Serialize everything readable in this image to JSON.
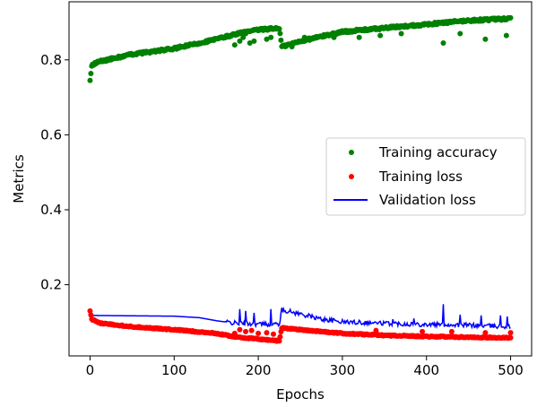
{
  "chart_data": {
    "type": "scatter",
    "xlabel": "Epochs",
    "ylabel": "Metrics",
    "xlim": [
      -25,
      525
    ],
    "ylim": [
      0.01,
      0.955
    ],
    "xticks": [
      0,
      100,
      200,
      300,
      400,
      500
    ],
    "yticks": [
      0.2,
      0.4,
      0.6,
      0.8
    ],
    "ytick_labels": [
      "0.2",
      "0.4",
      "0.6",
      "0.8"
    ],
    "xtick_labels": [
      "0",
      "100",
      "200",
      "300",
      "400",
      "500"
    ],
    "grid": false,
    "legend_position": "center-right",
    "series": [
      {
        "name": "Training accuracy",
        "style": "markers",
        "color": "#008000",
        "trend": [
          [
            0,
            0.745
          ],
          [
            2,
            0.785
          ],
          [
            10,
            0.795
          ],
          [
            50,
            0.815
          ],
          [
            100,
            0.83
          ],
          [
            150,
            0.855
          ],
          [
            175,
            0.87
          ],
          [
            200,
            0.88
          ],
          [
            225,
            0.885
          ],
          [
            228,
            0.835
          ],
          [
            250,
            0.85
          ],
          [
            300,
            0.875
          ],
          [
            350,
            0.885
          ],
          [
            400,
            0.895
          ],
          [
            450,
            0.905
          ],
          [
            500,
            0.91
          ]
        ],
        "outliers": [
          [
            172,
            0.84
          ],
          [
            178,
            0.85
          ],
          [
            182,
            0.86
          ],
          [
            185,
            0.87
          ],
          [
            190,
            0.845
          ],
          [
            195,
            0.85
          ],
          [
            210,
            0.855
          ],
          [
            215,
            0.86
          ],
          [
            240,
            0.835
          ],
          [
            255,
            0.86
          ],
          [
            290,
            0.86
          ],
          [
            320,
            0.86
          ],
          [
            345,
            0.865
          ],
          [
            370,
            0.87
          ],
          [
            420,
            0.845
          ],
          [
            440,
            0.87
          ],
          [
            470,
            0.855
          ],
          [
            495,
            0.865
          ]
        ]
      },
      {
        "name": "Training loss",
        "style": "markers",
        "color": "#ff0000",
        "trend": [
          [
            0,
            0.13
          ],
          [
            2,
            0.108
          ],
          [
            10,
            0.098
          ],
          [
            50,
            0.088
          ],
          [
            100,
            0.08
          ],
          [
            150,
            0.07
          ],
          [
            175,
            0.06
          ],
          [
            200,
            0.055
          ],
          [
            225,
            0.05
          ],
          [
            228,
            0.085
          ],
          [
            250,
            0.08
          ],
          [
            300,
            0.07
          ],
          [
            350,
            0.065
          ],
          [
            400,
            0.062
          ],
          [
            450,
            0.06
          ],
          [
            500,
            0.058
          ]
        ],
        "outliers": [
          [
            172,
            0.07
          ],
          [
            178,
            0.08
          ],
          [
            185,
            0.075
          ],
          [
            192,
            0.078
          ],
          [
            200,
            0.07
          ],
          [
            210,
            0.072
          ],
          [
            218,
            0.068
          ],
          [
            340,
            0.078
          ],
          [
            395,
            0.075
          ],
          [
            430,
            0.075
          ],
          [
            470,
            0.072
          ],
          [
            500,
            0.072
          ]
        ]
      },
      {
        "name": "Validation loss",
        "style": "line",
        "color": "#0000ff",
        "trend": [
          [
            0,
            0.118
          ],
          [
            50,
            0.117
          ],
          [
            100,
            0.116
          ],
          [
            130,
            0.112
          ],
          [
            150,
            0.104
          ],
          [
            170,
            0.098
          ],
          [
            200,
            0.095
          ],
          [
            225,
            0.095
          ],
          [
            228,
            0.133
          ],
          [
            250,
            0.122
          ],
          [
            275,
            0.108
          ],
          [
            300,
            0.101
          ],
          [
            350,
            0.097
          ],
          [
            400,
            0.094
          ],
          [
            450,
            0.092
          ],
          [
            500,
            0.088
          ]
        ],
        "spikes": [
          [
            178,
            0.135
          ],
          [
            185,
            0.13
          ],
          [
            195,
            0.125
          ],
          [
            215,
            0.135
          ],
          [
            262,
            0.118
          ],
          [
            285,
            0.11
          ],
          [
            320,
            0.105
          ],
          [
            360,
            0.108
          ],
          [
            385,
            0.11
          ],
          [
            420,
            0.148
          ],
          [
            440,
            0.12
          ],
          [
            465,
            0.118
          ],
          [
            488,
            0.118
          ],
          [
            496,
            0.115
          ]
        ]
      }
    ]
  }
}
